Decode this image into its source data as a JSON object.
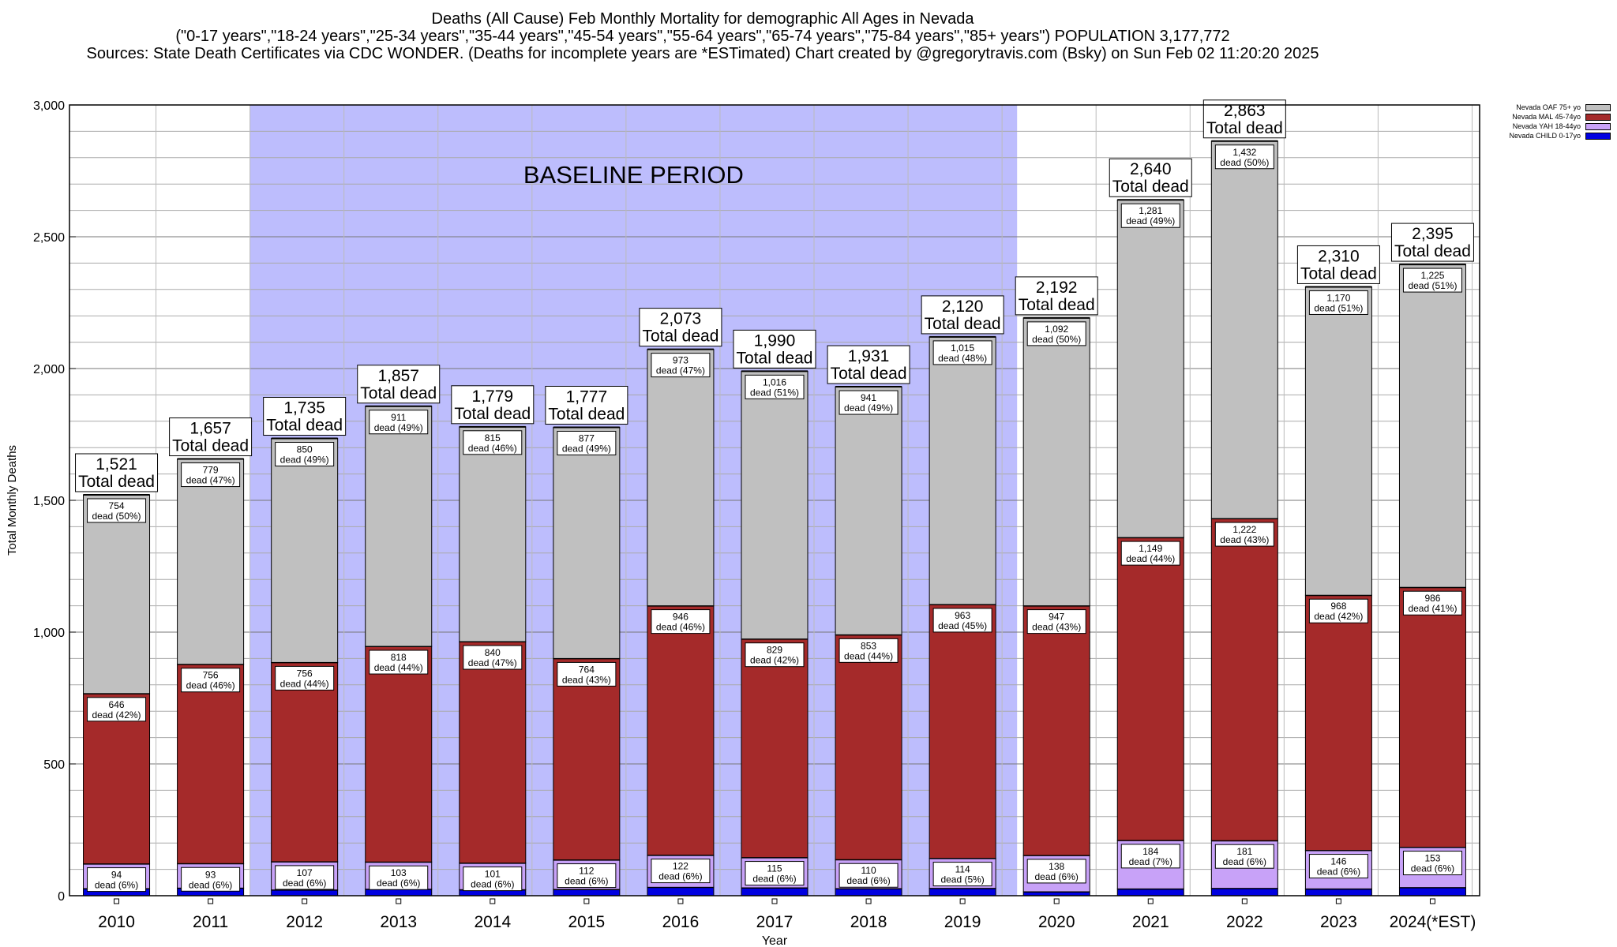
{
  "titles": {
    "line1": "Deaths (All Cause) Feb Monthly Mortality for demographic All Ages in Nevada",
    "line2": "(\"0-17 years\",\"18-24 years\",\"25-34 years\",\"35-44 years\",\"45-54 years\",\"55-64 years\",\"65-74 years\",\"75-84 years\",\"85+ years\") POPULATION 3,177,772",
    "line3": "Sources: State Death Certificates via CDC WONDER. (Deaths for incomplete years are *ESTimated)                 Chart created by @gregorytravis.com (Bsky) on Sun Feb 02 11:20:20 2025"
  },
  "legend": [
    {
      "label": "Nevada OAF 75+ yo",
      "color": "#c0c0c0"
    },
    {
      "label": "Nevada MAL 45-74yo",
      "color": "#a52a2a"
    },
    {
      "label": "Nevada YAH 18-44yo",
      "color": "#c8a2f8"
    },
    {
      "label": "Nevada CHILD 0-17yo",
      "color": "#0000e0"
    }
  ],
  "chart_data": {
    "type": "bar",
    "stacked": true,
    "xlabel": "Year",
    "ylabel": "Total Monthly Deaths",
    "ylim": [
      0,
      3000
    ],
    "yticks": [
      "0",
      "500",
      "1,000",
      "1,500",
      "2,000",
      "2,500",
      "3,000"
    ],
    "baseline_label": "BASELINE PERIOD",
    "baseline_categories": [
      "2012",
      "2019"
    ],
    "total_suffix": "Total dead",
    "categories": [
      "2010",
      "2011",
      "2012",
      "2013",
      "2014",
      "2015",
      "2016",
      "2017",
      "2018",
      "2019",
      "2020",
      "2021",
      "2022",
      "2023",
      "2024(*EST)"
    ],
    "series": [
      {
        "name": "Nevada CHILD 0-17yo",
        "color": "#0000e0",
        "values": [
          27,
          29,
          22,
          25,
          23,
          24,
          32,
          30,
          27,
          28,
          15,
          26,
          28,
          26,
          31
        ]
      },
      {
        "name": "Nevada YAH 18-44yo",
        "color": "#c8a2f8",
        "values": [
          94,
          93,
          107,
          103,
          101,
          112,
          122,
          115,
          110,
          114,
          138,
          184,
          181,
          146,
          153
        ],
        "labels": [
          "94\ndead (6%)",
          "93\ndead (6%)",
          "107\ndead (6%)",
          "103\ndead (6%)",
          "101\ndead (6%)",
          "112\ndead (6%)",
          "122\ndead (6%)",
          "115\ndead (6%)",
          "110\ndead (6%)",
          "114\ndead (5%)",
          "138\ndead (6%)",
          "184\ndead (7%)",
          "181\ndead (6%)",
          "146\ndead (6%)",
          "153\ndead (6%)"
        ]
      },
      {
        "name": "Nevada MAL 45-74yo",
        "color": "#a52a2a",
        "values": [
          646,
          756,
          756,
          818,
          840,
          764,
          946,
          829,
          853,
          963,
          947,
          1149,
          1222,
          968,
          986
        ],
        "labels": [
          "646\ndead (42%)",
          "756\ndead (46%)",
          "756\ndead (44%)",
          "818\ndead (44%)",
          "840\ndead (47%)",
          "764\ndead (43%)",
          "946\ndead (46%)",
          "829\ndead (42%)",
          "853\ndead (44%)",
          "963\ndead (45%)",
          "947\ndead (43%)",
          "1,149\ndead (44%)",
          "1,222\ndead (43%)",
          "968\ndead (42%)",
          "986\ndead (41%)"
        ]
      },
      {
        "name": "Nevada OAF 75+ yo",
        "color": "#c0c0c0",
        "values": [
          754,
          779,
          850,
          911,
          815,
          877,
          973,
          1016,
          941,
          1015,
          1092,
          1281,
          1432,
          1170,
          1225
        ],
        "labels": [
          "754\ndead (50%)",
          "779\ndead (47%)",
          "850\ndead (49%)",
          "911\ndead (49%)",
          "815\ndead (46%)",
          "877\ndead (49%)",
          "973\ndead (47%)",
          "1,016\ndead (51%)",
          "941\ndead (49%)",
          "1,015\ndead (48%)",
          "1,092\ndead (50%)",
          "1,281\ndead (49%)",
          "1,432\ndead (50%)",
          "1,170\ndead (51%)",
          "1,225\ndead (51%)"
        ]
      }
    ],
    "totals": [
      1521,
      1657,
      1735,
      1857,
      1779,
      1777,
      2073,
      1990,
      1931,
      2120,
      2192,
      2640,
      2863,
      2310,
      2395
    ],
    "total_labels": [
      "1,521",
      "1,657",
      "1,735",
      "1,857",
      "1,779",
      "1,777",
      "2,073",
      "1,990",
      "1,931",
      "2,120",
      "2,192",
      "2,640",
      "2,863",
      "2,310",
      "2,395"
    ]
  }
}
